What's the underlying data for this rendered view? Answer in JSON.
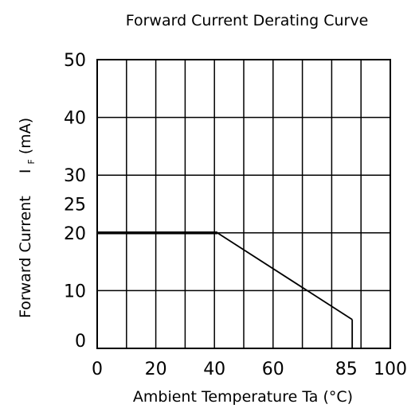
{
  "chart_data": {
    "type": "line",
    "title": "Forward Current Derating Curve",
    "xlabel": "Ambient Temperature Ta (°C)",
    "ylabel_prefix": "Forward Current",
    "ylabel_symbol": "I",
    "ylabel_subscript": "F",
    "ylabel_unit": "(mA)",
    "xlim": [
      0,
      100
    ],
    "ylim": [
      0,
      50
    ],
    "grid": true,
    "x_grid_step": 10,
    "y_grid_step": 10,
    "x_ticks": [
      {
        "value": 0,
        "label": "0"
      },
      {
        "value": 20,
        "label": "20"
      },
      {
        "value": 40,
        "label": "40"
      },
      {
        "value": 60,
        "label": "60"
      },
      {
        "value": 85,
        "label": "85"
      },
      {
        "value": 100,
        "label": "100"
      }
    ],
    "y_ticks": [
      {
        "value": 0,
        "label": "0"
      },
      {
        "value": 10,
        "label": "10"
      },
      {
        "value": 20,
        "label": "20"
      },
      {
        "value": 25,
        "label": "25"
      },
      {
        "value": 30,
        "label": "30"
      },
      {
        "value": 40,
        "label": "40"
      },
      {
        "value": 50,
        "label": "50"
      }
    ],
    "series": [
      {
        "values": [
          {
            "x": 0,
            "y": 20
          },
          {
            "x": 41,
            "y": 20
          },
          {
            "x": 87,
            "y": 5
          },
          {
            "x": 87,
            "y": 0
          }
        ],
        "color": "#000000"
      }
    ]
  }
}
